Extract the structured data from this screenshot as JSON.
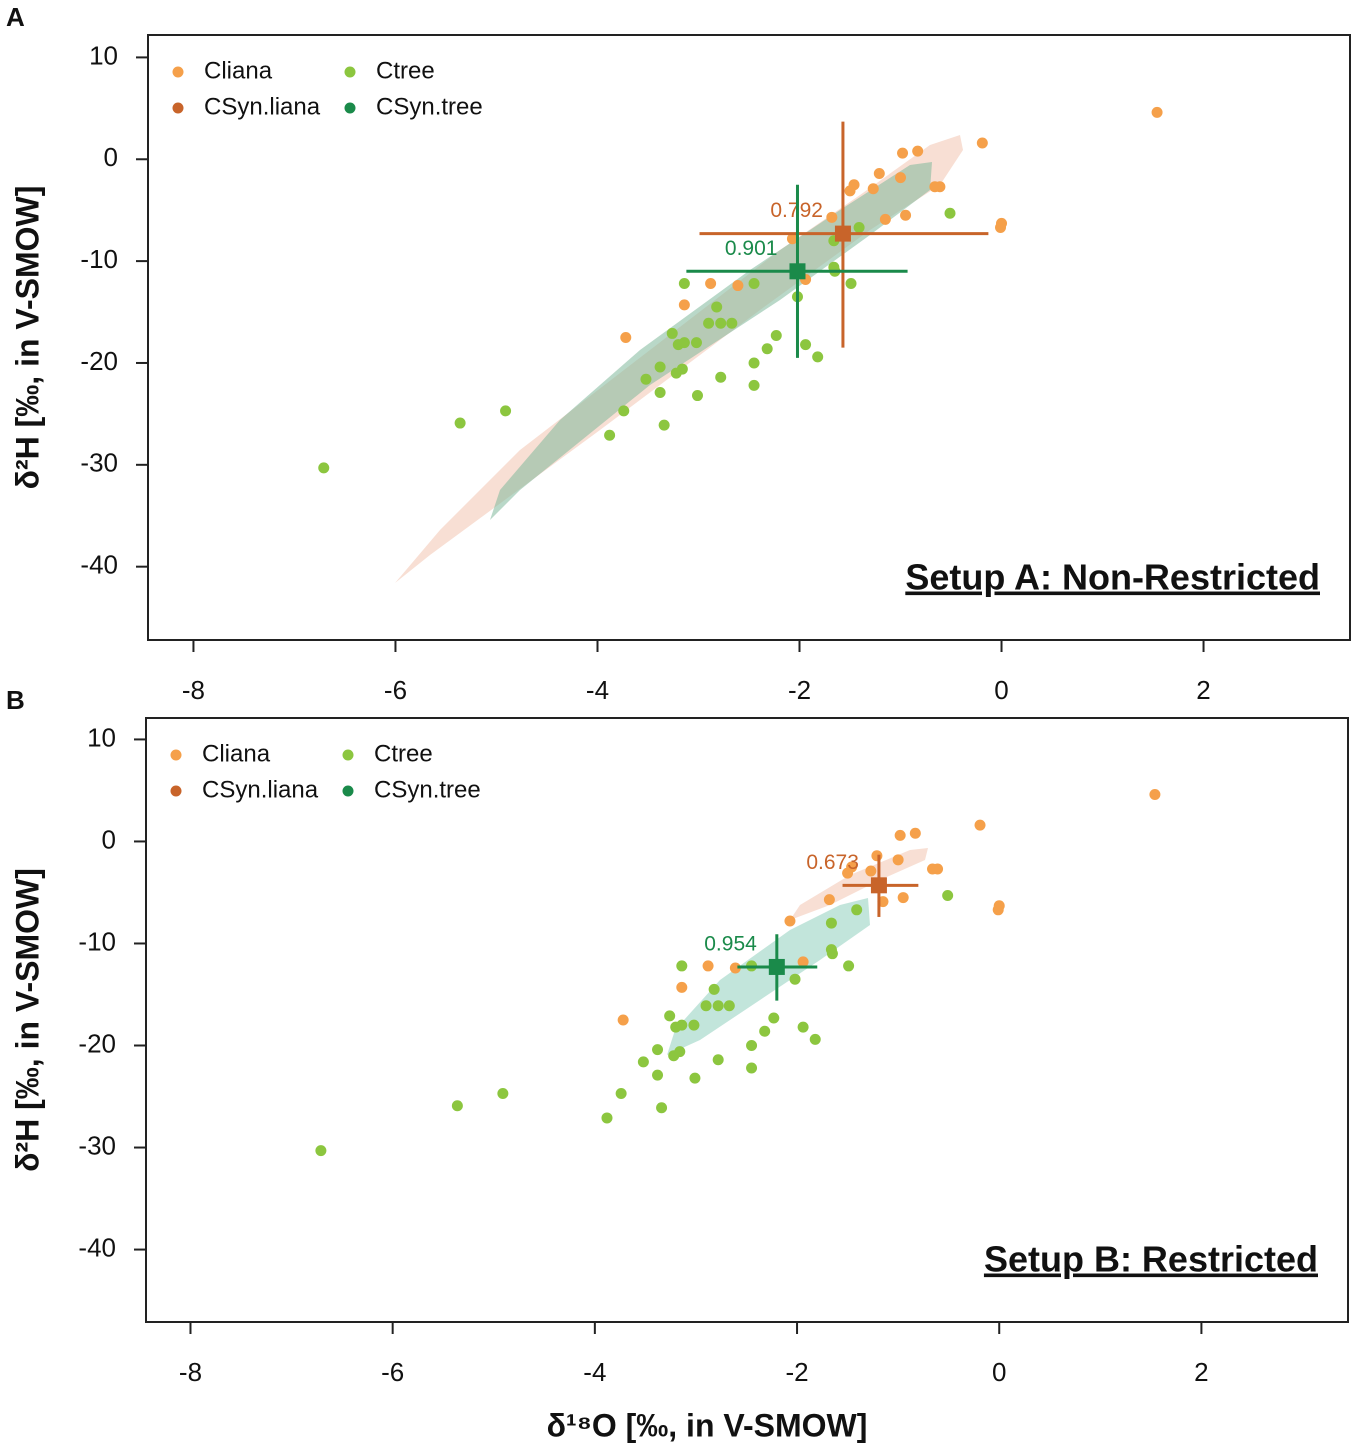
{
  "charts": [
    {
      "type": "scatter",
      "panel_label": "A",
      "setup_label": "Setup A: Non-Restricted",
      "ylabel": "δ²H [‰, in V-SMOW]",
      "xlim": [
        -8.45,
        3.45
      ],
      "ylim": [
        -47.2,
        12.2
      ],
      "xticks": [
        -8,
        -6,
        -4,
        -2,
        0,
        2
      ],
      "yticks": [
        10,
        0,
        -10,
        -20,
        -30,
        -40
      ],
      "legend": "upper left",
      "series": [
        {
          "name": "Cliana",
          "color": "#f5a04a",
          "x": [
            1.54,
            -0.19,
            -0.83,
            -0.98,
            0,
            -0.01,
            -0.61,
            -0.66,
            -1.0,
            -1.21,
            -1.27,
            -1.46,
            -1.5,
            -1.15,
            -0.95,
            -1.68,
            -2.07,
            -1.94,
            -2.88,
            -2.61,
            -3.14,
            -3.72
          ],
          "values": [
            4.6,
            1.6,
            0.8,
            0.6,
            -6.3,
            -6.7,
            -2.7,
            -2.7,
            -1.8,
            -1.4,
            -2.9,
            -2.5,
            -3.1,
            -5.9,
            -5.5,
            -5.7,
            -7.8,
            -11.8,
            -12.2,
            -12.4,
            -14.3,
            -17.5
          ]
        },
        {
          "name": "Ctree",
          "color": "#8cc63f",
          "x": [
            -6.71,
            -5.36,
            -4.91,
            -3.88,
            -3.74,
            -3.34,
            -3.38,
            -3.52,
            -3.38,
            -3.22,
            -3.16,
            -3.26,
            -3.2,
            -3.14,
            -3.02,
            -3.01,
            -2.78,
            -2.82,
            -2.9,
            -2.78,
            -2.67,
            -2.45,
            -2.45,
            -2.32,
            -2.23,
            -2.45,
            -3.14,
            -1.94,
            -1.82,
            -2.02,
            -1.66,
            -1.65,
            -1.66,
            -1.49,
            -1.41,
            -0.51
          ],
          "values": [
            -30.3,
            -25.9,
            -24.7,
            -27.1,
            -24.7,
            -26.1,
            -22.9,
            -21.6,
            -20.4,
            -21.0,
            -20.6,
            -17.1,
            -18.2,
            -18.0,
            -18.0,
            -23.2,
            -21.4,
            -14.5,
            -16.1,
            -16.1,
            -16.1,
            -22.2,
            -20.0,
            -18.6,
            -17.3,
            -12.2,
            -12.2,
            -18.2,
            -19.4,
            -13.5,
            -10.6,
            -11.0,
            -8.0,
            -12.2,
            -6.7,
            -5.3
          ]
        },
        {
          "name": "CSyn.liana",
          "color": "#c8642a",
          "annotation": "0.792",
          "x": [
            -1.57
          ],
          "values": [
            -7.3
          ],
          "x_range": [
            [
              -2.99,
              -0.13
            ]
          ],
          "y_range": [
            [
              -18.5,
              3.7
            ]
          ]
        },
        {
          "name": "CSyn.tree",
          "color": "#1a8a4a",
          "annotation": "0.901",
          "x": [
            -2.02
          ],
          "values": [
            -11.0
          ],
          "x_range": [
            [
              -3.12,
              -0.93
            ]
          ],
          "y_range": [
            [
              -19.5,
              -2.5
            ]
          ]
        }
      ]
    },
    {
      "type": "scatter",
      "panel_label": "B",
      "setup_label": "Setup B: Restricted",
      "ylabel": "δ²H [‰, in V-SMOW]",
      "xlabel": "δ¹⁸O [‰, in V-SMOW]",
      "xlim": [
        -8.44,
        3.45
      ],
      "ylim": [
        -47.1,
        12.1
      ],
      "xticks": [
        -8,
        -6,
        -4,
        -2,
        0,
        2
      ],
      "yticks": [
        10,
        0,
        -10,
        -20,
        -30,
        -40
      ],
      "legend": "upper left",
      "series": [
        {
          "name": "Cliana",
          "color": "#f5a04a",
          "x": [
            1.54,
            -0.19,
            -0.83,
            -0.98,
            0,
            -0.01,
            -0.61,
            -0.66,
            -1.0,
            -1.21,
            -1.27,
            -1.46,
            -1.5,
            -1.15,
            -0.95,
            -1.68,
            -2.07,
            -1.94,
            -2.88,
            -2.61,
            -3.14,
            -3.72
          ],
          "values": [
            4.6,
            1.6,
            0.8,
            0.6,
            -6.3,
            -6.7,
            -2.7,
            -2.7,
            -1.8,
            -1.4,
            -2.9,
            -2.5,
            -3.1,
            -5.9,
            -5.5,
            -5.7,
            -7.8,
            -11.8,
            -12.2,
            -12.4,
            -14.3,
            -17.5
          ]
        },
        {
          "name": "Ctree",
          "color": "#8cc63f",
          "x": [
            -6.71,
            -5.36,
            -4.91,
            -3.88,
            -3.74,
            -3.34,
            -3.38,
            -3.52,
            -3.38,
            -3.22,
            -3.16,
            -3.26,
            -3.2,
            -3.14,
            -3.02,
            -3.01,
            -2.78,
            -2.82,
            -2.9,
            -2.78,
            -2.67,
            -2.45,
            -2.45,
            -2.32,
            -2.23,
            -2.45,
            -3.14,
            -1.94,
            -1.82,
            -2.02,
            -1.66,
            -1.65,
            -1.66,
            -1.49,
            -1.41,
            -0.51
          ],
          "values": [
            -30.3,
            -25.9,
            -24.7,
            -27.1,
            -24.7,
            -26.1,
            -22.9,
            -21.6,
            -20.4,
            -21.0,
            -20.6,
            -17.1,
            -18.2,
            -18.0,
            -18.0,
            -23.2,
            -21.4,
            -14.5,
            -16.1,
            -16.1,
            -16.1,
            -22.2,
            -20.0,
            -18.6,
            -17.3,
            -12.2,
            -12.2,
            -18.2,
            -19.4,
            -13.5,
            -10.6,
            -11.0,
            -8.0,
            -12.2,
            -6.7,
            -5.3
          ]
        },
        {
          "name": "CSyn.liana",
          "color": "#c8642a",
          "annotation": "0.673",
          "x": [
            -1.19
          ],
          "values": [
            -4.3
          ],
          "x_range": [
            [
              -1.55,
              -0.8
            ]
          ],
          "y_range": [
            [
              -7.4,
              -1.3
            ]
          ]
        },
        {
          "name": "CSyn.tree",
          "color": "#1a8a4a",
          "annotation": "0.954",
          "x": [
            -2.2
          ],
          "values": [
            -12.3
          ],
          "x_range": [
            [
              -2.59,
              -1.8
            ]
          ],
          "y_range": [
            [
              -15.6,
              -9.1
            ]
          ]
        }
      ]
    }
  ]
}
